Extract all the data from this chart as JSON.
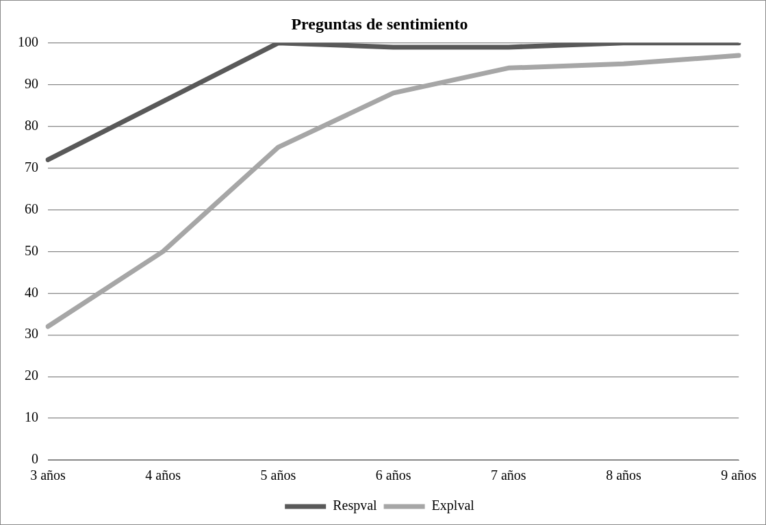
{
  "chart_data": {
    "type": "line",
    "title": "Preguntas de sentimiento",
    "categories": [
      "3 años",
      "4 años",
      "5 años",
      "6 años",
      "7 años",
      "8 años",
      "9 años"
    ],
    "series": [
      {
        "name": "Respval",
        "color": "#595959",
        "values": [
          72,
          86,
          100,
          99,
          99,
          100,
          100
        ]
      },
      {
        "name": "Explval",
        "color": "#a6a6a6",
        "values": [
          32,
          50,
          75,
          88,
          94,
          95,
          97
        ]
      }
    ],
    "ylim": [
      0,
      100
    ],
    "yticks": [
      0,
      10,
      20,
      30,
      40,
      50,
      60,
      70,
      80,
      90,
      100
    ],
    "grid": "y",
    "legend": "bottom",
    "marker": "none",
    "line_style": "solid"
  }
}
